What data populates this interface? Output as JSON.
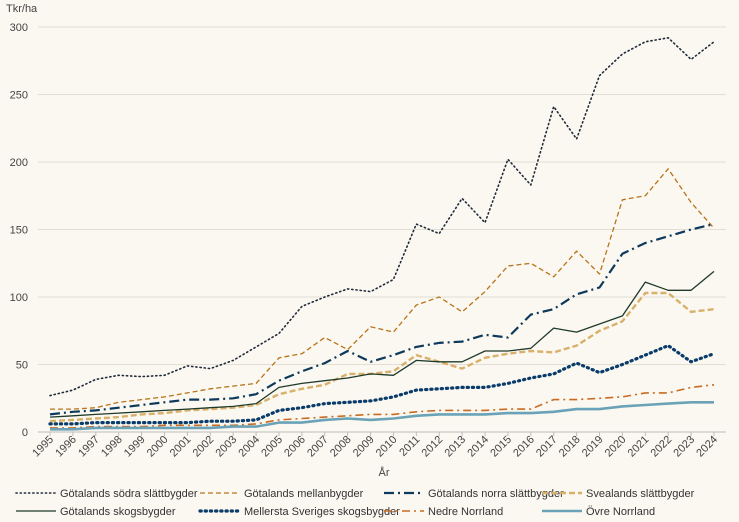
{
  "chart_data": {
    "type": "line",
    "title": "",
    "ylabel": "Tkr/ha",
    "xlabel": "År",
    "ylim": [
      0,
      300
    ],
    "yticks": [
      0,
      50,
      100,
      150,
      200,
      250,
      300
    ],
    "grid": true,
    "legend_position": "bottom",
    "x": [
      "1995",
      "1996",
      "1997",
      "1998",
      "1999",
      "2000",
      "2001",
      "2002",
      "2003",
      "2004",
      "2005",
      "2006",
      "2007",
      "2008",
      "2009",
      "2010",
      "2011",
      "2012",
      "2013",
      "2014",
      "2015",
      "2016",
      "2017",
      "2018",
      "2019",
      "2020",
      "2021",
      "2022",
      "2023",
      "2024"
    ],
    "series": [
      {
        "name": "Götalands södra slättbygder",
        "color": "#1f2a3a",
        "dash": "dotted",
        "values": [
          27,
          31,
          39,
          42,
          41,
          42,
          49,
          47,
          53,
          63,
          73,
          93,
          100,
          106,
          104,
          113,
          154,
          147,
          173,
          155,
          202,
          183,
          241,
          217,
          264,
          280,
          289,
          292,
          276,
          289
        ]
      },
      {
        "name": "Götalands mellanbygder",
        "color": "#b8741a",
        "dash": "dashed",
        "values": [
          17,
          17,
          18,
          22,
          24,
          26,
          29,
          32,
          34,
          36,
          55,
          58,
          70,
          61,
          78,
          74,
          94,
          100,
          89,
          104,
          123,
          125,
          115,
          134,
          117,
          172,
          175,
          195,
          170,
          151
        ]
      },
      {
        "name": "Götalands norra slättbygder",
        "color": "#0d3a5c",
        "dash": "dashdot",
        "values": [
          13,
          15,
          16,
          18,
          20,
          22,
          24,
          24,
          25,
          28,
          38,
          45,
          51,
          60,
          52,
          57,
          63,
          66,
          67,
          72,
          70,
          87,
          91,
          102,
          107,
          132,
          140,
          145,
          150,
          154
        ]
      },
      {
        "name": "Svealands slättbygder",
        "color": "#d9b06a",
        "dash": "dashed-thick",
        "values": [
          8,
          9,
          10,
          11,
          13,
          14,
          16,
          17,
          18,
          20,
          28,
          32,
          35,
          43,
          43,
          45,
          57,
          52,
          47,
          55,
          58,
          60,
          59,
          64,
          75,
          82,
          103,
          103,
          89,
          91
        ]
      },
      {
        "name": "Götalands skogsbygder",
        "color": "#1f3a2a",
        "dash": "solid",
        "values": [
          11,
          12,
          13,
          14,
          15,
          16,
          17,
          18,
          19,
          21,
          33,
          36,
          38,
          40,
          43,
          42,
          53,
          52,
          52,
          60,
          60,
          62,
          77,
          74,
          80,
          86,
          111,
          105,
          105,
          119
        ]
      },
      {
        "name": "Mellersta Sveriges skogsbygder",
        "color": "#0a3c6b",
        "dash": "dotted-thick",
        "values": [
          6,
          6,
          7,
          7,
          7,
          7,
          7,
          8,
          8,
          9,
          16,
          18,
          21,
          22,
          23,
          26,
          31,
          32,
          33,
          33,
          36,
          40,
          43,
          51,
          44,
          50,
          57,
          64,
          52,
          58
        ]
      },
      {
        "name": "Nedre Norrland",
        "color": "#c96a20",
        "dash": "dashdot-orange",
        "values": [
          3,
          3,
          4,
          4,
          4,
          5,
          5,
          5,
          5,
          6,
          9,
          10,
          11,
          12,
          13,
          13,
          15,
          16,
          16,
          16,
          17,
          17,
          24,
          24,
          25,
          26,
          29,
          29,
          33,
          35
        ]
      },
      {
        "name": "Övre Norrland",
        "color": "#6aa3b8",
        "dash": "solid-thick",
        "values": [
          2,
          2,
          3,
          3,
          3,
          3,
          3,
          3,
          4,
          4,
          7,
          7,
          9,
          10,
          9,
          10,
          12,
          13,
          13,
          13,
          14,
          14,
          15,
          17,
          17,
          19,
          20,
          21,
          22,
          22
        ]
      }
    ]
  }
}
